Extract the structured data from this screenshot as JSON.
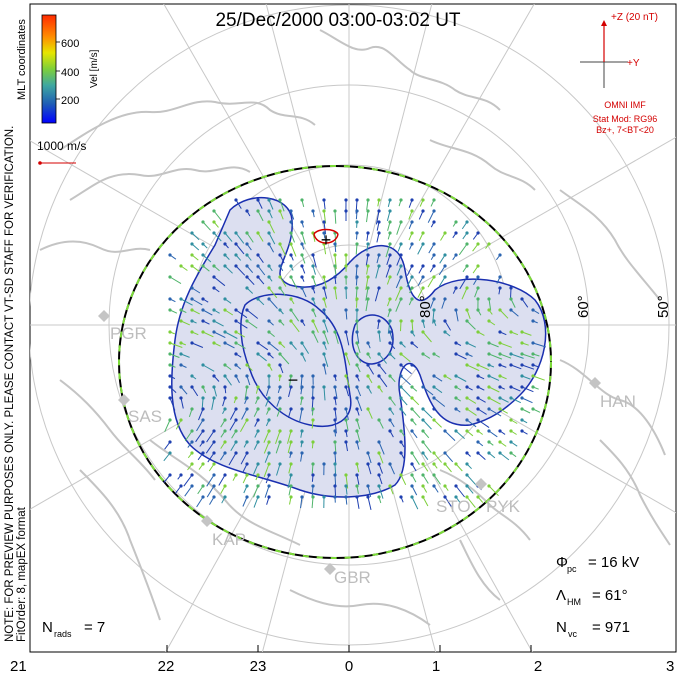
{
  "title": "25/Dec/2000 03:00-03:02 UT",
  "coordinates_label": "MLT coordinates",
  "colorbar": {
    "label": "Vel [m/s]",
    "ticks": [
      "600",
      "400",
      "200"
    ],
    "colors": [
      "#0000ff",
      "#1f6fb3",
      "#3fa8a0",
      "#7dcf3a",
      "#e6e600",
      "#ff8c00",
      "#ff2a00"
    ]
  },
  "scale_vector": "1000 m/s",
  "side_note": "NOTE: FOR PREVIEW PURPOSES ONLY. PLEASE CONTACT VT-SD STAFF FOR VERIFICATION.",
  "fit_order": "FitOrder: 8, mapEX format",
  "imf": {
    "z_label": "+Z (20 nT)",
    "y_label": "+Y",
    "source": "OMNI IMF",
    "stat_mod": "Stat Mod: RG96",
    "condition": "Bz+, 7<BT<20"
  },
  "latitude_labels": [
    "80°",
    "60°",
    "50°"
  ],
  "station_labels": [
    "PGR",
    "SAS",
    "KAP",
    "GBR",
    "STO",
    "PYK",
    "HAN"
  ],
  "markers": {
    "plus": "+",
    "minus": "−"
  },
  "stats": {
    "phi_pc": "= 16 kV",
    "lambda_hm": "= 61°",
    "n_vc": "= 971",
    "n_rads": "= 7"
  },
  "stat_symbols": {
    "phi": "Φ",
    "phi_sub": "pc",
    "lambda": "Λ",
    "lambda_sub": "HM",
    "n": "N",
    "nvc_sub": "vc",
    "nrads_sub": "rads"
  },
  "mlt_ticks": [
    "21",
    "22",
    "23",
    "0",
    "1",
    "2",
    "3"
  ],
  "colors": {
    "contour": "#1a2fb0",
    "convection_fill": "#dcdff0",
    "grid": "#bdbdbd",
    "imf": "#d40000"
  }
}
